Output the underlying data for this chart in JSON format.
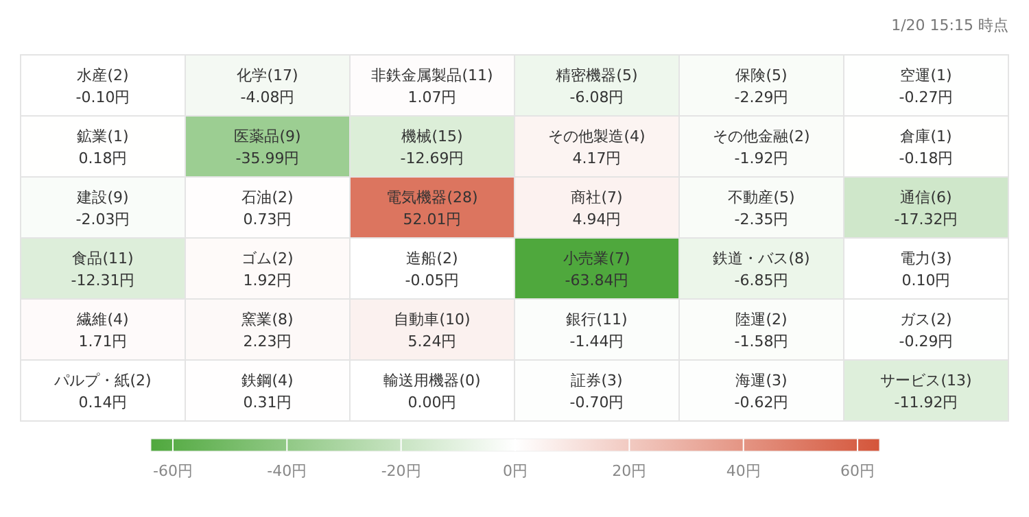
{
  "chart_data": {
    "type": "heatmap",
    "annotations": [
      "1/20 15:15 時点"
    ],
    "categories": [
      null,
      null,
      null,
      null,
      null,
      null
    ],
    "y_categories": [
      null,
      null,
      null,
      null,
      null,
      null
    ],
    "cells": [
      [
        -0.1,
        -4.08,
        1.07,
        -6.08,
        -2.29,
        -0.27
      ],
      [
        0.18,
        -35.99,
        -12.69,
        4.17,
        -1.92,
        -0.18
      ],
      [
        -2.03,
        0.73,
        52.01,
        4.94,
        -2.35,
        -17.32
      ],
      [
        -12.31,
        1.92,
        -0.05,
        -63.84,
        -6.85,
        0.1
      ],
      [
        1.71,
        2.23,
        5.24,
        -1.44,
        -1.58,
        -0.29
      ],
      [
        0.14,
        0.31,
        0.0,
        -0.7,
        -0.62,
        -11.92
      ]
    ],
    "cell_labels": [
      [
        "水産(2)\n-0.10円",
        "化学(17)\n-4.08円",
        "非鉄金属製品(11)\n1.07円",
        "精密機器(5)\n-6.08円",
        "保険(5)\n-2.29円",
        "空運(1)\n-0.27円"
      ],
      [
        "鉱業(1)\n0.18円",
        "医薬品(9)\n-35.99円",
        "機械(15)\n-12.69円",
        "その他製造(4)\n4.17円",
        "その他金融(2)\n-1.92円",
        "倉庫(1)\n-0.18円"
      ],
      [
        "建設(9)\n-2.03円",
        "石油(2)\n0.73円",
        "電気機器(28)\n52.01円",
        "商社(7)\n4.94円",
        "不動産(5)\n-2.35円",
        "通信(6)\n-17.32円"
      ],
      [
        "食品(11)\n-12.31円",
        "ゴム(2)\n1.92円",
        "造船(2)\n-0.05円",
        "小売業(7)\n-63.84円",
        "鉄道・バス(8)\n-6.85円",
        "電力(3)\n0.10円"
      ],
      [
        "繊維(4)\n1.71円",
        "窯業(8)\n2.23円",
        "自動車(10)\n5.24円",
        "銀行(11)\n-1.44円",
        "陸運(2)\n-1.58円",
        "ガス(2)\n-0.29円"
      ],
      [
        "パルプ・紙(2)\n0.14円",
        "鉄鋼(4)\n0.31円",
        "輸送用機器(0)\n0.00円",
        "証券(3)\n-0.70円",
        "海運(3)\n-0.62円",
        "サービス(13)\n-11.92円"
      ]
    ],
    "clim": [
      -63.84,
      63.84
    ],
    "cticks": [
      {
        "value": -60,
        "label": "-60円"
      },
      {
        "value": -40,
        "label": "-40円"
      },
      {
        "value": -20,
        "label": "-20円"
      },
      {
        "value": 0,
        "label": "0円"
      },
      {
        "value": 20,
        "label": "20円"
      },
      {
        "value": 40,
        "label": "40円"
      },
      {
        "value": 60,
        "label": "60円"
      }
    ]
  }
}
